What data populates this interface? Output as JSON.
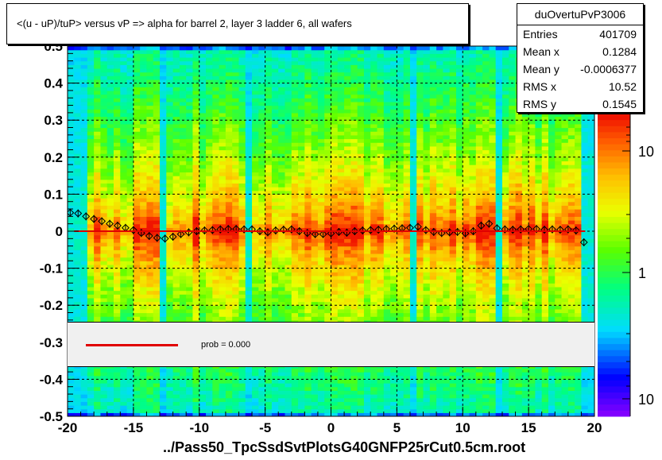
{
  "title": "<(u - uP)/tuP>  versus   vP => alpha for barrel 2, layer 3 ladder 6, all wafers",
  "stats": {
    "name": "duOvertuPvP3006",
    "rows": [
      {
        "key": "Entries",
        "value": "401709"
      },
      {
        "key": "Mean x",
        "value": "0.1284"
      },
      {
        "key": "Mean y",
        "value": "-0.0006377"
      },
      {
        "key": "RMS x",
        "value": "10.52"
      },
      {
        "key": "RMS y",
        "value": "0.1545"
      }
    ]
  },
  "legend": {
    "label": "prob = 0.000",
    "line_color": "#e00000"
  },
  "xlabel": "../Pass50_TpcSsdSvtPlotsG40GNFP25rCut0.5cm.root",
  "chart_data": {
    "type": "heatmap",
    "xlim": [
      -20,
      20
    ],
    "ylim": [
      -0.5,
      0.5
    ],
    "xticks": [
      "-20",
      "-15",
      "-10",
      "-5",
      "0",
      "5",
      "10",
      "15",
      "20"
    ],
    "yticks": [
      "-0.5",
      "-0.4",
      "-0.3",
      "-0.2",
      "-0.1",
      "0",
      "0.1",
      "0.2",
      "0.3",
      "0.4",
      "0.5"
    ],
    "colorbar": {
      "scale": "log",
      "ticks": [
        "10",
        "1",
        "10"
      ]
    },
    "grid": true,
    "profile": {
      "x": [
        -19.8,
        -19.2,
        -18.6,
        -18.0,
        -17.4,
        -16.8,
        -16.2,
        -15.6,
        -15.0,
        -14.4,
        -13.8,
        -13.2,
        -12.6,
        -12.0,
        -11.4,
        -10.8,
        -10.2,
        -9.6,
        -9.0,
        -8.4,
        -7.8,
        -7.2,
        -6.6,
        -6.0,
        -5.4,
        -4.8,
        -4.2,
        -3.6,
        -3.0,
        -2.4,
        -1.8,
        -1.2,
        -0.6,
        0.0,
        0.6,
        1.2,
        1.8,
        2.4,
        3.0,
        3.6,
        4.2,
        4.8,
        5.4,
        6.0,
        6.6,
        7.2,
        7.8,
        8.4,
        9.0,
        9.6,
        10.2,
        10.8,
        11.4,
        12.0,
        12.6,
        13.2,
        13.8,
        14.4,
        15.0,
        15.6,
        16.2,
        16.8,
        17.4,
        18.0,
        18.6,
        19.2
      ],
      "y": [
        0.05,
        0.048,
        0.04,
        0.033,
        0.027,
        0.02,
        0.015,
        0.009,
        0.003,
        -0.005,
        -0.013,
        -0.018,
        -0.02,
        -0.015,
        -0.008,
        -0.003,
        0.0,
        0.002,
        0.003,
        0.005,
        0.006,
        0.006,
        0.005,
        0.005,
        0.0,
        -0.003,
        0.002,
        0.004,
        0.005,
        0.0,
        -0.005,
        -0.008,
        -0.008,
        -0.006,
        -0.002,
        -0.004,
        0.0,
        0.002,
        0.003,
        0.004,
        0.006,
        0.007,
        0.008,
        0.009,
        0.012,
        0.003,
        -0.002,
        -0.005,
        -0.003,
        -0.002,
        -0.006,
        0.0,
        0.015,
        0.02,
        0.008,
        0.005,
        0.004,
        0.005,
        0.006,
        0.006,
        0.004,
        0.005,
        0.004,
        0.005,
        0.002,
        -0.03
      ]
    },
    "fit": {
      "y": 0.0,
      "color": "#e00000"
    }
  }
}
